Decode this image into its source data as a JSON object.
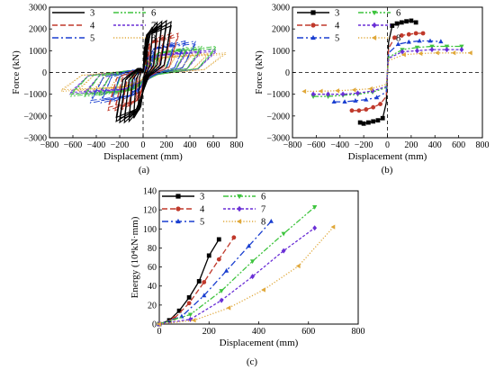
{
  "colors": {
    "3": "#000000",
    "4": "#c0392b",
    "5": "#1a3fd0",
    "6": "#3ec43e",
    "7": "#6a2fd6",
    "8": "#e0a83a"
  },
  "chart_data": [
    {
      "panel": "(a)",
      "type": "line",
      "subtype": "hysteresis",
      "xlabel": "Displacement (mm)",
      "ylabel": "Force (kN)",
      "xlim": [
        -800,
        800
      ],
      "ylim": [
        -3000,
        3000
      ],
      "xticks": [
        -800,
        -600,
        -400,
        -200,
        0,
        200,
        400,
        600,
        800
      ],
      "yticks": [
        -3000,
        -2000,
        -1000,
        0,
        1000,
        2000,
        3000
      ],
      "legend": {
        "position": "top-left",
        "entries": [
          "3",
          "6",
          "4",
          "7",
          "5",
          "8"
        ]
      },
      "series": [
        {
          "name": "3",
          "max_disp": [
            40,
            80,
            120,
            160,
            200,
            240
          ],
          "min_disp": [
            -40,
            -80,
            -120,
            -160,
            -200,
            -230
          ],
          "peak_force": [
            1500,
            2100,
            2300,
            2350,
            2380,
            2330
          ],
          "min_force": [
            -1500,
            -2100,
            -2250,
            -2300,
            -2300,
            -2250
          ]
        },
        {
          "name": "4",
          "max_disp": [
            60,
            120,
            180,
            240,
            300
          ],
          "min_disp": [
            -60,
            -120,
            -180,
            -240,
            -300
          ],
          "peak_force": [
            1200,
            1600,
            1750,
            1800,
            1800
          ],
          "min_force": [
            -1100,
            -1550,
            -1700,
            -1750,
            -1750
          ]
        },
        {
          "name": "5",
          "max_disp": [
            90,
            180,
            270,
            360,
            450
          ],
          "min_disp": [
            -90,
            -180,
            -270,
            -360,
            -450
          ],
          "peak_force": [
            1000,
            1300,
            1400,
            1450,
            1450
          ],
          "min_force": [
            -950,
            -1250,
            -1350,
            -1400,
            -1400
          ]
        },
        {
          "name": "6",
          "max_disp": [
            125,
            250,
            375,
            500,
            625
          ],
          "min_disp": [
            -125,
            -250,
            -375,
            -500,
            -625
          ],
          "peak_force": [
            850,
            1050,
            1150,
            1200,
            1200
          ],
          "min_force": [
            -850,
            -1000,
            -1050,
            -1100,
            -1100
          ]
        },
        {
          "name": "7",
          "max_disp": [
            125,
            250,
            375,
            500,
            625
          ],
          "min_disp": [
            -125,
            -250,
            -375,
            -500,
            -625
          ],
          "peak_force": [
            800,
            950,
            1000,
            1050,
            1050
          ],
          "min_force": [
            -800,
            -950,
            -1000,
            -1000,
            -1000
          ]
        },
        {
          "name": "8",
          "max_disp": [
            140,
            280,
            420,
            560,
            700
          ],
          "min_disp": [
            -140,
            -280,
            -420,
            -560,
            -700
          ],
          "peak_force": [
            650,
            800,
            860,
            900,
            900
          ],
          "min_force": [
            -650,
            -780,
            -840,
            -860,
            -870
          ]
        }
      ]
    },
    {
      "panel": "(b)",
      "type": "line",
      "subtype": "skeleton",
      "xlabel": "Displacement (mm)",
      "ylabel": "Force (kN)",
      "xlim": [
        -800,
        800
      ],
      "ylim": [
        -3000,
        3000
      ],
      "xticks": [
        -800,
        -600,
        -400,
        -200,
        0,
        200,
        400,
        600,
        800
      ],
      "yticks": [
        -3000,
        -2000,
        -1000,
        0,
        1000,
        2000,
        3000
      ],
      "legend": {
        "position": "top-left",
        "entries": [
          "3",
          "6",
          "4",
          "7",
          "5",
          "8"
        ]
      },
      "series": [
        {
          "name": "3",
          "marker": "square",
          "x": [
            -230,
            -200,
            -160,
            -120,
            -80,
            -40,
            -10,
            0,
            10,
            40,
            80,
            120,
            160,
            200,
            240
          ],
          "y": [
            -2300,
            -2350,
            -2300,
            -2250,
            -2200,
            -2100,
            -1400,
            0,
            1400,
            2150,
            2250,
            2300,
            2350,
            2380,
            2300
          ]
        },
        {
          "name": "4",
          "marker": "circle",
          "x": [
            -300,
            -240,
            -180,
            -120,
            -60,
            -10,
            0,
            10,
            60,
            120,
            180,
            240,
            300
          ],
          "y": [
            -1750,
            -1750,
            -1700,
            -1600,
            -1450,
            -1100,
            0,
            1100,
            1600,
            1700,
            1750,
            1800,
            1800
          ]
        },
        {
          "name": "5",
          "marker": "triangle",
          "x": [
            -450,
            -360,
            -270,
            -180,
            -90,
            -10,
            0,
            10,
            90,
            180,
            270,
            360,
            450
          ],
          "y": [
            -1350,
            -1350,
            -1300,
            -1250,
            -1150,
            -900,
            0,
            900,
            1300,
            1400,
            1450,
            1450,
            1420
          ]
        },
        {
          "name": "6",
          "marker": "triangle-down",
          "x": [
            -625,
            -500,
            -375,
            -250,
            -125,
            -10,
            0,
            10,
            125,
            250,
            375,
            500,
            625
          ],
          "y": [
            -1100,
            -1100,
            -1050,
            -1000,
            -900,
            -700,
            0,
            700,
            1050,
            1150,
            1200,
            1200,
            1200
          ]
        },
        {
          "name": "7",
          "marker": "diamond",
          "x": [
            -625,
            -500,
            -375,
            -250,
            -125,
            -10,
            0,
            10,
            125,
            250,
            375,
            500,
            625
          ],
          "y": [
            -1000,
            -1000,
            -1000,
            -950,
            -850,
            -650,
            0,
            650,
            950,
            1000,
            1050,
            1050,
            1050
          ]
        },
        {
          "name": "8",
          "marker": "triangle-left",
          "x": [
            -700,
            -560,
            -420,
            -280,
            -140,
            -10,
            0,
            10,
            140,
            280,
            420,
            560,
            700
          ],
          "y": [
            -870,
            -860,
            -840,
            -800,
            -750,
            -550,
            0,
            550,
            820,
            870,
            900,
            900,
            900
          ]
        }
      ]
    },
    {
      "panel": "(c)",
      "type": "line",
      "xlabel": "Displacement (mm)",
      "ylabel": "Energy (10⁴kN·mm)",
      "xlim": [
        0,
        800
      ],
      "ylim": [
        0,
        140
      ],
      "xticks": [
        0,
        200,
        400,
        600,
        800
      ],
      "yticks": [
        0,
        20,
        40,
        60,
        80,
        100,
        120,
        140
      ],
      "legend": {
        "position": "top-left",
        "entries": [
          "3",
          "6",
          "4",
          "7",
          "5",
          "8"
        ]
      },
      "series": [
        {
          "name": "3",
          "marker": "square",
          "x": [
            0,
            40,
            80,
            120,
            160,
            200,
            240
          ],
          "y": [
            0,
            4,
            14,
            28,
            45,
            72,
            89
          ]
        },
        {
          "name": "4",
          "marker": "circle",
          "x": [
            0,
            60,
            120,
            180,
            240,
            300
          ],
          "y": [
            0,
            6,
            22,
            44,
            68,
            91
          ]
        },
        {
          "name": "5",
          "marker": "triangle",
          "x": [
            0,
            90,
            180,
            270,
            360,
            450
          ],
          "y": [
            0,
            8,
            30,
            56,
            82,
            108
          ]
        },
        {
          "name": "6",
          "marker": "triangle-down",
          "x": [
            0,
            125,
            250,
            375,
            500,
            625
          ],
          "y": [
            0,
            10,
            35,
            66,
            95,
            123
          ]
        },
        {
          "name": "7",
          "marker": "diamond",
          "x": [
            0,
            125,
            250,
            375,
            500,
            625
          ],
          "y": [
            0,
            5,
            25,
            50,
            77,
            101
          ]
        },
        {
          "name": "8",
          "marker": "triangle-left",
          "x": [
            0,
            140,
            280,
            420,
            560,
            700
          ],
          "y": [
            0,
            4,
            17,
            36,
            61,
            102
          ]
        }
      ]
    }
  ]
}
